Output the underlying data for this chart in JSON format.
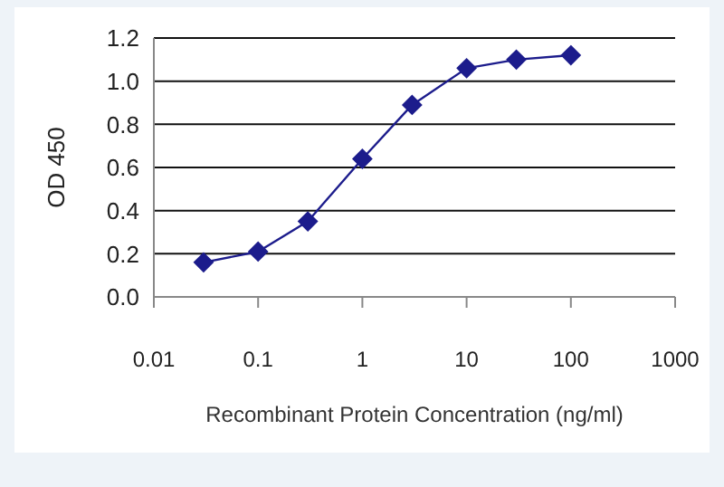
{
  "chart_data": {
    "type": "line",
    "xlabel": "Recombinant Protein Concentration (ng/ml)",
    "ylabel": "OD 450",
    "x": [
      0.03,
      0.1,
      0.3,
      1,
      3,
      10,
      30,
      100
    ],
    "series": [
      {
        "color": "#1c1c8c",
        "values": [
          0.16,
          0.21,
          0.35,
          0.64,
          0.89,
          1.06,
          1.1,
          1.12
        ]
      }
    ],
    "log": "x",
    "xlim": [
      0.01,
      1000
    ],
    "xticks": [
      0.01,
      0.1,
      1,
      10,
      100,
      1000
    ],
    "ylim": [
      0,
      1.2
    ],
    "yticks": [
      {
        "value": 0,
        "label": "0.0"
      },
      {
        "value": 0.2,
        "label": "0.2"
      },
      {
        "value": 0.4,
        "label": "0.4"
      },
      {
        "value": 0.6,
        "label": "0.6"
      },
      {
        "value": 0.8,
        "label": "0.8"
      },
      {
        "value": 1,
        "label": "1.0"
      },
      {
        "value": 1.2,
        "label": "1.2"
      }
    ],
    "grid": "y",
    "marker": "diamond",
    "line_style": "solid"
  }
}
